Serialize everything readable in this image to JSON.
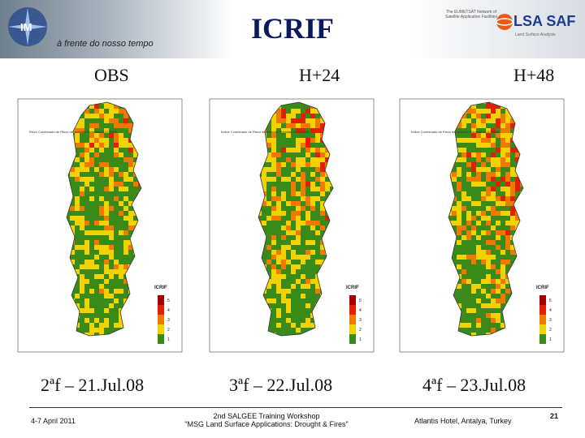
{
  "header": {
    "title": "ICRIF",
    "tagline": "à frente do nosso tempo",
    "lsa_small_text": "The EUMETSAT Network of Satellite Application Facilities",
    "lsa_name": "LSA SAF",
    "lsa_sub": "Land Surface Analysis"
  },
  "columns": [
    {
      "label": "OBS",
      "date": "2ªf – 21.Jul.08",
      "map_note": "Risco Combinado de Risco de Incêndio Florestal 21.07.2008"
    },
    {
      "label": "H+24",
      "date": "3ªf – 22.Jul.08",
      "map_note": "Índice Combinado de Risco de Incêndio Florestal 22.07.2008"
    },
    {
      "label": "H+48",
      "date": "4ªf – 23.Jul.08",
      "map_note": "Índice Combinado de Risco de Incêndio Florestal 23.07.2008"
    }
  ],
  "map_legend": {
    "title": "ICRIF",
    "levels": [
      "5",
      "4",
      "3",
      "2",
      "1"
    ],
    "colors": [
      "#a30000",
      "#e02000",
      "#f07a00",
      "#f2d200",
      "#3a8a1a"
    ]
  },
  "footer": {
    "left": "4-7 April 2011",
    "center_line1": "2nd SALGEE Training Workshop",
    "center_line2": "\"MSG Land Surface Applications: Drought & Fires\"",
    "right": "Atlantis Hotel, Antalya, Turkey",
    "page": "21"
  },
  "colors": {
    "title": "#0a1a5c",
    "lsa_brand": "#1b3d8f"
  }
}
